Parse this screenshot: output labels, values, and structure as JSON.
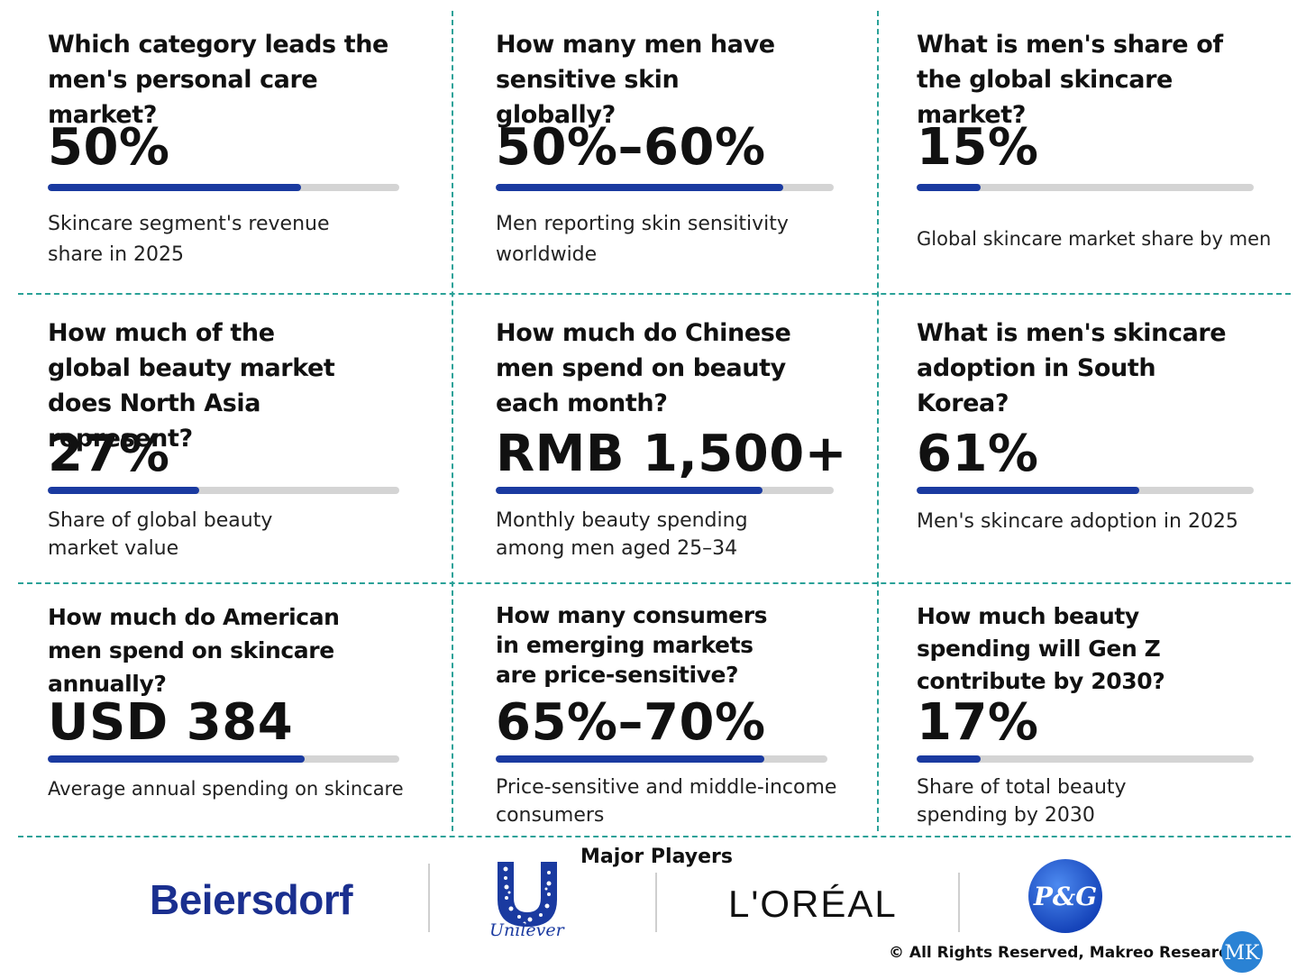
{
  "cards": [
    {
      "question": "Which category leads the men's personal care market?",
      "value": "50%",
      "fill_pct": 72,
      "description": "Skincare segment's revenue share in 2025"
    },
    {
      "question": "How many men have sensitive skin globally?",
      "value": "50%–60%",
      "fill_pct": 85,
      "description": "Men reporting skin sensitivity worldwide"
    },
    {
      "question": "What is men's share of the global skincare market?",
      "value": "15%",
      "fill_pct": 19,
      "description": "Global skincare market share by men"
    },
    {
      "question": "How much of the global beauty market does North Asia represent?",
      "value": "27%",
      "fill_pct": 43,
      "description": "Share of global beauty market value"
    },
    {
      "question": "How much do Chinese men spend on beauty each month?",
      "value": "RMB 1,500+",
      "fill_pct": 79,
      "description": "Monthly beauty spending among men aged 25–34"
    },
    {
      "question": "What is men's skincare adoption in South Korea?",
      "value": "61%",
      "fill_pct": 66,
      "description": "Men's skincare adoption in 2025"
    },
    {
      "question": "How much do American men spend on skincare annually?",
      "value": "USD 384",
      "fill_pct": 73,
      "description": "Average annual spending on skincare"
    },
    {
      "question": "How many consumers in emerging markets are price-sensitive?",
      "value": "65%–70%",
      "fill_pct": 81,
      "description": "Price-sensitive and middle-income consumers"
    },
    {
      "question": "How much beauty spending will Gen Z contribute by 2030?",
      "value": "17%",
      "fill_pct": 19,
      "description": "Share of total beauty spending by 2030"
    }
  ],
  "footer": {
    "players_title": "Major Players",
    "logos": {
      "beiersdorf": "Beiersdorf",
      "unilever": "Unilever",
      "loreal": "L'ORÉAL",
      "pg": "P&G"
    },
    "copyright": "© All Rights Reserved, Makreo Research",
    "mk_mark": "MK"
  },
  "colors": {
    "accent_bar": "#1a3aa0",
    "track": "#d4d4d4",
    "divider": "#2aa198",
    "beiersdorf": "#1a2f8f",
    "pg_blue": "#1e5bd6"
  }
}
